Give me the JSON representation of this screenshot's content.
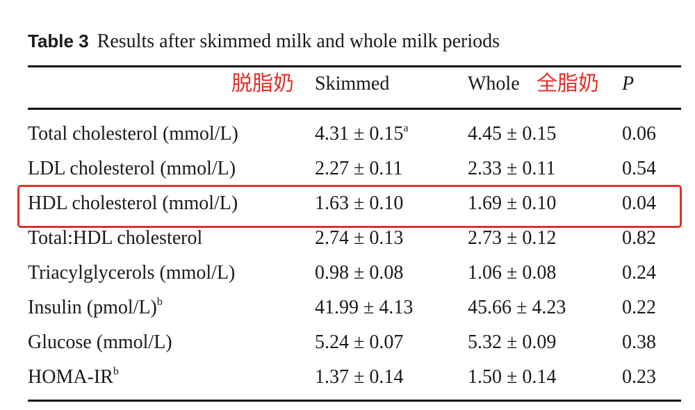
{
  "title": {
    "label": "Table 3",
    "text": "Results after skimmed milk and whole milk periods"
  },
  "annotations": {
    "skimmed": "脱脂奶",
    "whole": "全脂奶"
  },
  "header": [
    "Skimmed",
    "Whole",
    "P"
  ],
  "rows": [
    [
      {
        "text": "Total cholesterol (mmol/L)"
      },
      {
        "text": "4.31 ± 0.15",
        "sup": "a"
      },
      {
        "text": "4.45 ± 0.15"
      },
      {
        "text": "0.06"
      }
    ],
    [
      {
        "text": "LDL cholesterol (mmol/L)"
      },
      {
        "text": "2.27 ± 0.11"
      },
      {
        "text": "2.33 ± 0.11"
      },
      {
        "text": "0.54"
      }
    ],
    [
      {
        "text": "HDL cholesterol (mmol/L)"
      },
      {
        "text": "1.63 ± 0.10"
      },
      {
        "text": "1.69 ± 0.10"
      },
      {
        "text": "0.04"
      }
    ],
    [
      {
        "text": "Total:HDL cholesterol"
      },
      {
        "text": "2.74 ± 0.13"
      },
      {
        "text": "2.73 ± 0.12"
      },
      {
        "text": "0.82"
      }
    ],
    [
      {
        "text": "Triacylglycerols (mmol/L)"
      },
      {
        "text": "0.98 ± 0.08"
      },
      {
        "text": "1.06 ± 0.08"
      },
      {
        "text": "0.24"
      }
    ],
    [
      {
        "text": "Insulin (pmol/L)",
        "sup": "b"
      },
      {
        "text": "41.99 ± 4.13"
      },
      {
        "text": "45.66 ± 4.23"
      },
      {
        "text": "0.22"
      }
    ],
    [
      {
        "text": "Glucose (mmol/L)"
      },
      {
        "text": "5.24 ± 0.07"
      },
      {
        "text": "5.32 ± 0.09"
      },
      {
        "text": "0.38"
      }
    ],
    [
      {
        "text": "HOMA-IR",
        "sup": "b"
      },
      {
        "text": "1.37 ± 0.14"
      },
      {
        "text": "1.50 ± 0.14"
      },
      {
        "text": "0.23"
      }
    ]
  ]
}
